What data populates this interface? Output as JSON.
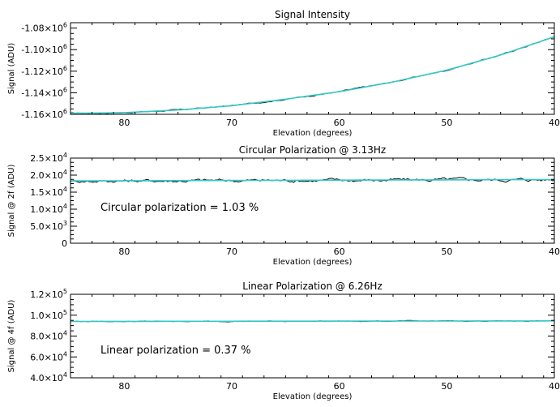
{
  "chart_data": [
    {
      "type": "line",
      "title": "Signal Intensity",
      "xlabel": "Elevation (degrees)",
      "ylabel": "Signal (ADU)",
      "xlim": [
        85,
        40
      ],
      "ylim": [
        -1160000,
        -1075000
      ],
      "x_ticks": [
        80,
        70,
        60,
        50,
        40
      ],
      "y_ticks": [
        {
          "value": -1160000,
          "mant": "-1.16×10",
          "exp": "6"
        },
        {
          "value": -1140000,
          "mant": "-1.14×10",
          "exp": "6"
        },
        {
          "value": -1120000,
          "mant": "-1.12×10",
          "exp": "6"
        },
        {
          "value": -1100000,
          "mant": "-1.10×10",
          "exp": "6"
        },
        {
          "value": -1080000,
          "mant": "-1.08×10",
          "exp": "6"
        }
      ],
      "series": [
        {
          "color": "#000000",
          "x": [
            85,
            80,
            75,
            70,
            65,
            60,
            55,
            50,
            45,
            40
          ],
          "y": [
            -1159000,
            -1158500,
            -1156000,
            -1152000,
            -1146000,
            -1139000,
            -1130000,
            -1119000,
            -1105000,
            -1088000
          ],
          "noise": 800
        },
        {
          "color": "#33c8c8",
          "x": [
            85,
            80,
            75,
            70,
            65,
            60,
            55,
            50,
            45,
            40
          ],
          "y": [
            -1159000,
            -1158500,
            -1156000,
            -1152000,
            -1146000,
            -1139000,
            -1130000,
            -1119000,
            -1105000,
            -1088000
          ]
        }
      ]
    },
    {
      "type": "line",
      "title": "Circular Polarization @ 3.13Hz",
      "xlabel": "Elevation (degrees)",
      "ylabel": "Signal @ 2f (ADU)",
      "xlim": [
        85,
        40
      ],
      "ylim": [
        0,
        25000
      ],
      "x_ticks": [
        80,
        70,
        60,
        50,
        40
      ],
      "y_ticks": [
        {
          "value": 0,
          "mant": "0",
          "exp": ""
        },
        {
          "value": 5000,
          "mant": "5.0×10",
          "exp": "3"
        },
        {
          "value": 10000,
          "mant": "1.0×10",
          "exp": "4"
        },
        {
          "value": 15000,
          "mant": "1.5×10",
          "exp": "4"
        },
        {
          "value": 20000,
          "mant": "2.0×10",
          "exp": "4"
        },
        {
          "value": 25000,
          "mant": "2.5×10",
          "exp": "4"
        }
      ],
      "annotation": "Circular polarization = 1.03 %",
      "series": [
        {
          "color": "#000000",
          "x": [
            85,
            40
          ],
          "y": [
            18300,
            18700
          ],
          "noise": 700
        },
        {
          "color": "#33c8c8",
          "x": [
            85,
            40
          ],
          "y": [
            18300,
            18700
          ]
        }
      ]
    },
    {
      "type": "line",
      "title": "Linear Polarization @ 6.26Hz",
      "xlabel": "Elevation (degrees)",
      "ylabel": "Signal @ 4f (ADU)",
      "xlim": [
        85,
        40
      ],
      "ylim": [
        40000,
        120000
      ],
      "x_ticks": [
        80,
        70,
        60,
        50,
        40
      ],
      "y_ticks": [
        {
          "value": 40000,
          "mant": "4.0×10",
          "exp": "4"
        },
        {
          "value": 60000,
          "mant": "6.0×10",
          "exp": "4"
        },
        {
          "value": 80000,
          "mant": "8.0×10",
          "exp": "4"
        },
        {
          "value": 100000,
          "mant": "1.0×10",
          "exp": "5"
        },
        {
          "value": 120000,
          "mant": "1.2×10",
          "exp": "5"
        }
      ],
      "annotation": "Linear polarization = 0.37 %",
      "series": [
        {
          "color": "#000000",
          "x": [
            85,
            40
          ],
          "y": [
            94000,
            94500
          ],
          "noise": 500
        },
        {
          "color": "#33c8c8",
          "x": [
            85,
            40
          ],
          "y": [
            94000,
            94500
          ]
        }
      ]
    }
  ]
}
